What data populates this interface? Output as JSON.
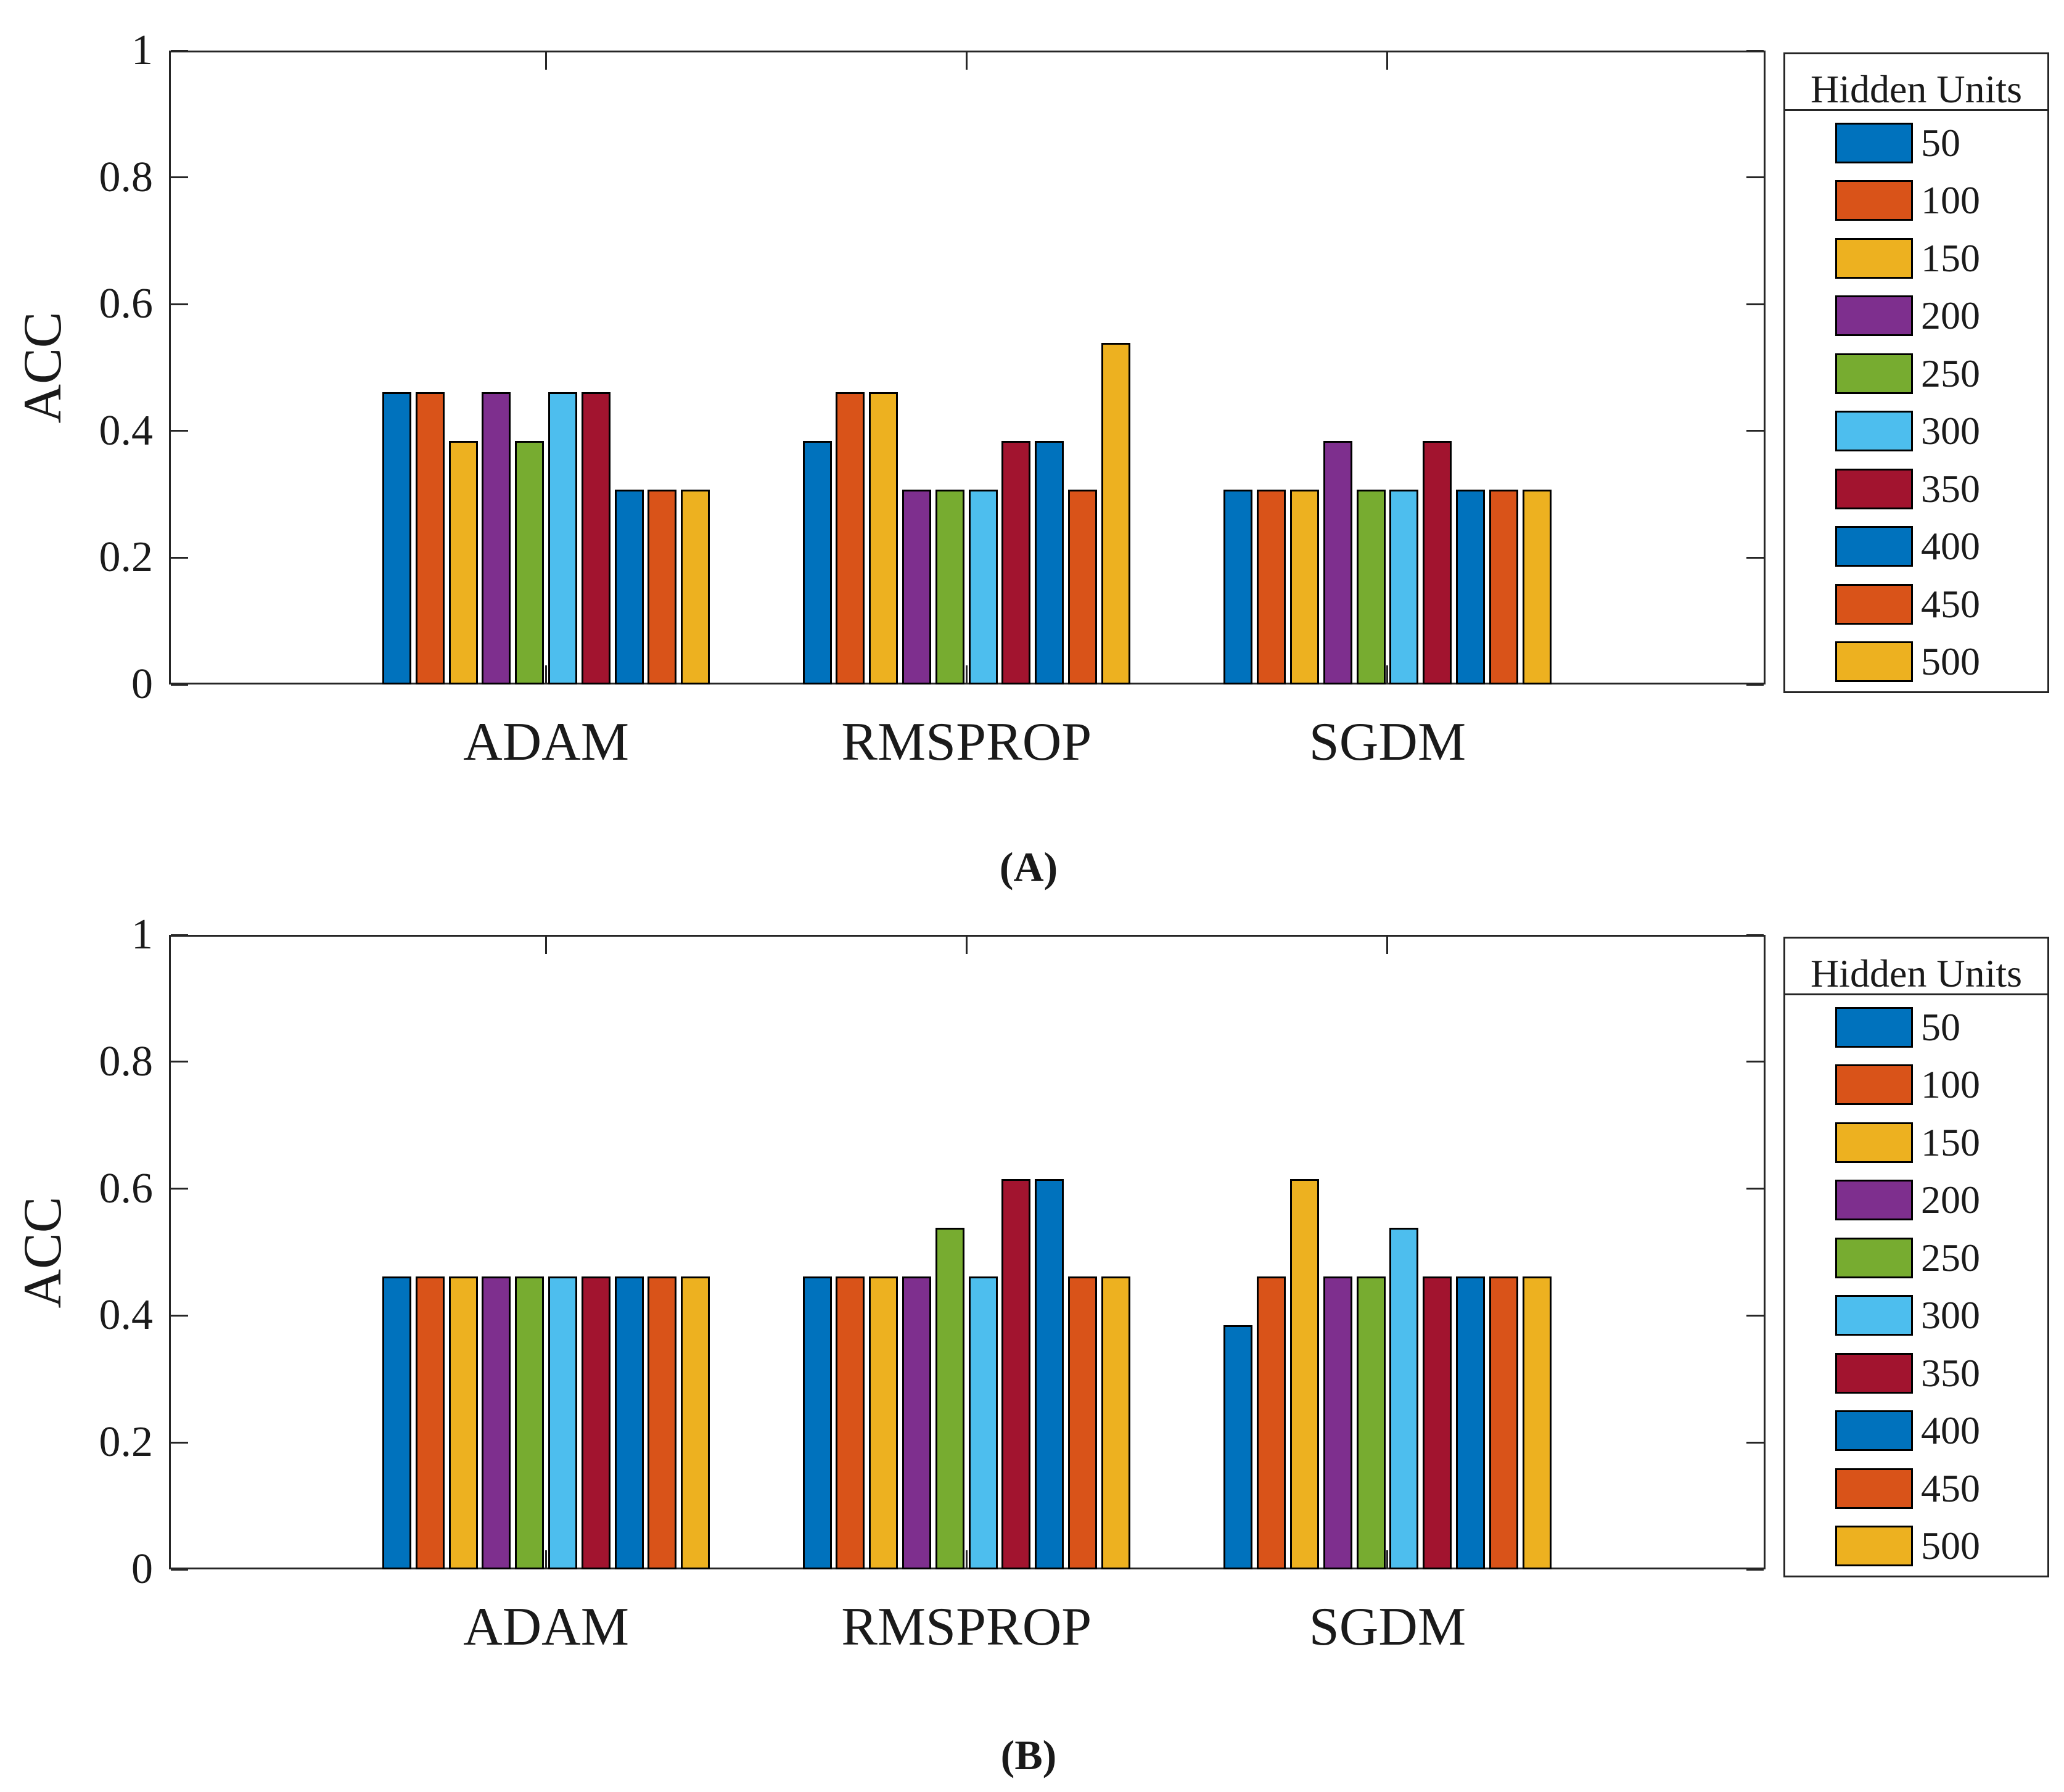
{
  "figure": {
    "ylabel": "ACC",
    "legend_title": "Hidden Units",
    "panel_a_label": "(A)",
    "panel_b_label": "(B)",
    "axis_color": "#262626",
    "bar_edge_color": "#000000"
  },
  "chart_data": [
    {
      "type": "bar",
      "panel": "A",
      "title": "",
      "xlabel": "",
      "ylabel": "ACC",
      "ylim": [
        0,
        1
      ],
      "yticks": [
        0,
        0.2,
        0.4,
        0.6,
        0.8,
        1
      ],
      "ytick_labels": [
        "0",
        "0.2",
        "0.4",
        "0.6",
        "0.8",
        "1"
      ],
      "grid": false,
      "legend_title": "Hidden Units",
      "legend_position": "right-outside",
      "categories": [
        "ADAM",
        "RMSPROP",
        "SGDM"
      ],
      "series": [
        {
          "name": "50",
          "color": "#0072BD",
          "values": [
            0.4615,
            0.3846,
            0.3077
          ]
        },
        {
          "name": "100",
          "color": "#D95319",
          "values": [
            0.4615,
            0.4615,
            0.3077
          ]
        },
        {
          "name": "150",
          "color": "#EDB120",
          "values": [
            0.3846,
            0.4615,
            0.3077
          ]
        },
        {
          "name": "200",
          "color": "#7E2F8E",
          "values": [
            0.4615,
            0.3077,
            0.3846
          ]
        },
        {
          "name": "250",
          "color": "#77AC30",
          "values": [
            0.3846,
            0.3077,
            0.3077
          ]
        },
        {
          "name": "300",
          "color": "#4DBEEE",
          "values": [
            0.4615,
            0.3077,
            0.3077
          ]
        },
        {
          "name": "350",
          "color": "#A2142F",
          "values": [
            0.4615,
            0.3846,
            0.3846
          ]
        },
        {
          "name": "400",
          "color": "#0072BD",
          "values": [
            0.3077,
            0.3846,
            0.3077
          ]
        },
        {
          "name": "450",
          "color": "#D95319",
          "values": [
            0.3077,
            0.3077,
            0.3077
          ]
        },
        {
          "name": "500",
          "color": "#EDB120",
          "values": [
            0.3077,
            0.5385,
            0.3077
          ]
        }
      ]
    },
    {
      "type": "bar",
      "panel": "B",
      "title": "",
      "xlabel": "",
      "ylabel": "ACC",
      "ylim": [
        0,
        1
      ],
      "yticks": [
        0,
        0.2,
        0.4,
        0.6,
        0.8,
        1
      ],
      "ytick_labels": [
        "0",
        "0.2",
        "0.4",
        "0.6",
        "0.8",
        "1"
      ],
      "grid": false,
      "legend_title": "Hidden Units",
      "legend_position": "right-outside",
      "categories": [
        "ADAM",
        "RMSPROP",
        "SGDM"
      ],
      "series": [
        {
          "name": "50",
          "color": "#0072BD",
          "values": [
            0.4615,
            0.4615,
            0.3846
          ]
        },
        {
          "name": "100",
          "color": "#D95319",
          "values": [
            0.4615,
            0.4615,
            0.4615
          ]
        },
        {
          "name": "150",
          "color": "#EDB120",
          "values": [
            0.4615,
            0.4615,
            0.6154
          ]
        },
        {
          "name": "200",
          "color": "#7E2F8E",
          "values": [
            0.4615,
            0.4615,
            0.4615
          ]
        },
        {
          "name": "250",
          "color": "#77AC30",
          "values": [
            0.4615,
            0.5385,
            0.4615
          ]
        },
        {
          "name": "300",
          "color": "#4DBEEE",
          "values": [
            0.4615,
            0.4615,
            0.5385
          ]
        },
        {
          "name": "350",
          "color": "#A2142F",
          "values": [
            0.4615,
            0.6154,
            0.4615
          ]
        },
        {
          "name": "400",
          "color": "#0072BD",
          "values": [
            0.4615,
            0.6154,
            0.4615
          ]
        },
        {
          "name": "450",
          "color": "#D95319",
          "values": [
            0.4615,
            0.4615,
            0.4615
          ]
        },
        {
          "name": "500",
          "color": "#EDB120",
          "values": [
            0.4615,
            0.4615,
            0.4615
          ]
        }
      ]
    }
  ]
}
